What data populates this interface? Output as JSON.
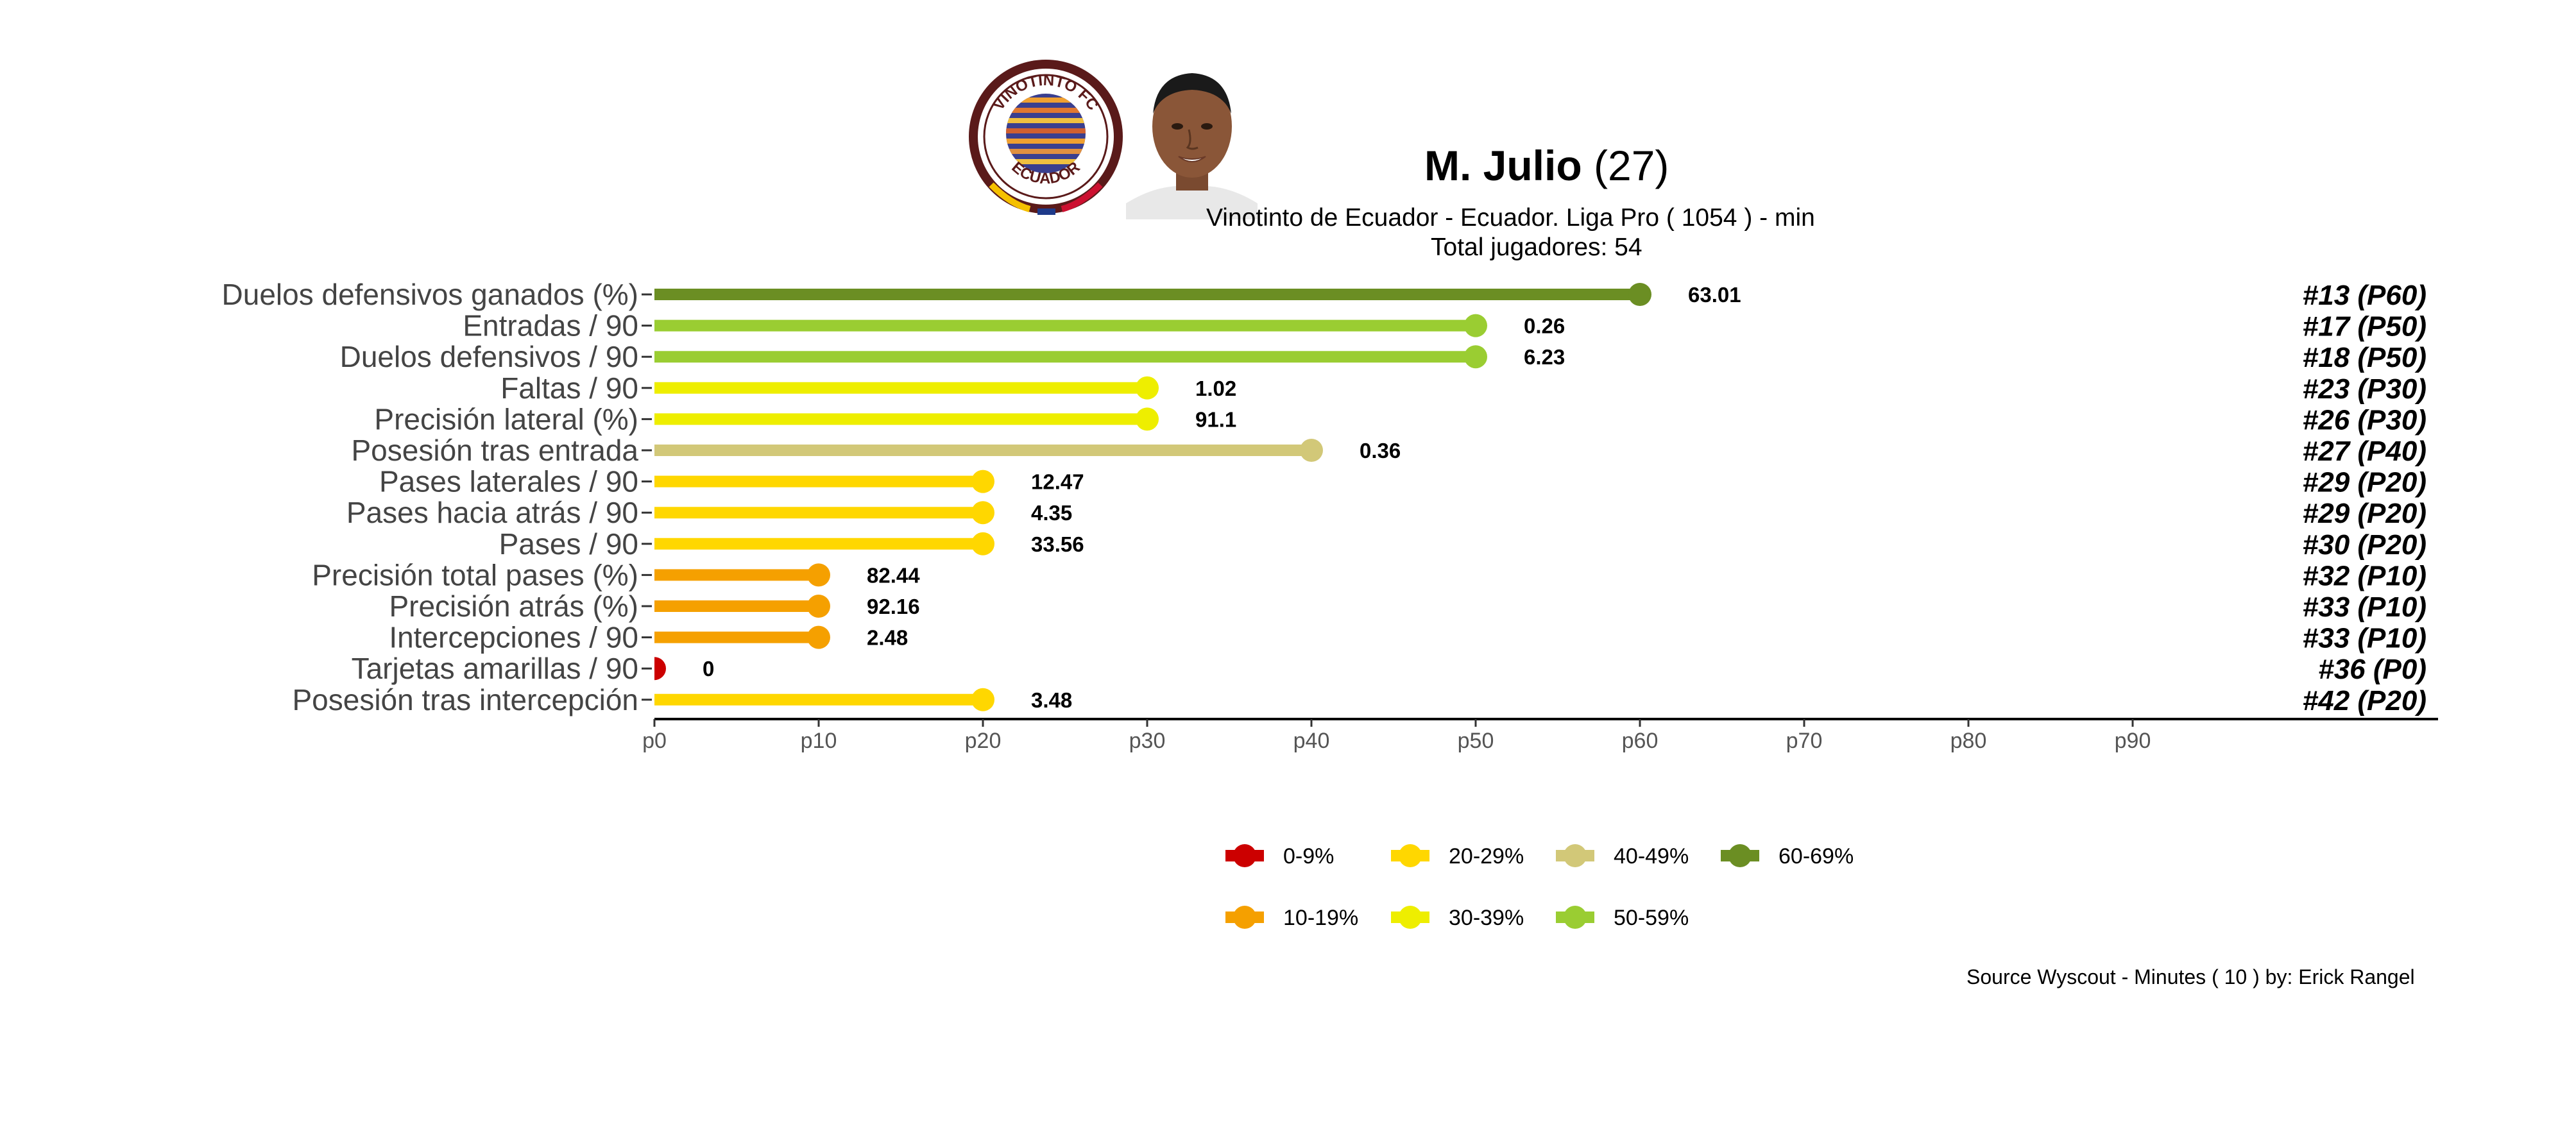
{
  "header": {
    "player_name": "M. Julio",
    "player_age": "(27)",
    "subtitle": "Vinotinto de Ecuador  -  Ecuador. Liga Pro  ( 1054 ) - min",
    "total_players": "Total jugadores:  54",
    "logo_text_top": "VINOTINTO FC",
    "logo_text_bottom": "ECUADOR"
  },
  "footer": {
    "source": "Source Wyscout - Minutes ( 10 ) by: Erick Rangel"
  },
  "colors": {
    "p0_9": "#cc0000",
    "p10_19": "#f5a000",
    "p20_29": "#ffd700",
    "p30_39": "#eeee00",
    "p40_49": "#d2c878",
    "p50_59": "#9acd32",
    "p60_69": "#6b8e23"
  },
  "chart_data": {
    "type": "bar",
    "orientation": "horizontal-lollipop",
    "xlim": [
      0,
      100
    ],
    "x_ticks": [
      "p0",
      "p10",
      "p20",
      "p30",
      "p40",
      "p50",
      "p60",
      "p70",
      "p80",
      "p90"
    ],
    "x_tick_values": [
      0,
      10,
      20,
      30,
      40,
      50,
      60,
      70,
      80,
      90
    ],
    "grid": false,
    "legend_position": "bottom",
    "legend": [
      {
        "label": "0-9%",
        "color": "#cc0000"
      },
      {
        "label": "10-19%",
        "color": "#f5a000"
      },
      {
        "label": "20-29%",
        "color": "#ffd700"
      },
      {
        "label": "30-39%",
        "color": "#eeee00"
      },
      {
        "label": "40-49%",
        "color": "#d2c878"
      },
      {
        "label": "50-59%",
        "color": "#9acd32"
      },
      {
        "label": "60-69%",
        "color": "#6b8e23"
      }
    ],
    "rows": [
      {
        "metric": "Duelos defensivos ganados (%)",
        "percentile": 60,
        "value": "63.01",
        "rank": "#13 (P60)",
        "color": "#6b8e23"
      },
      {
        "metric": "Entradas / 90",
        "percentile": 50,
        "value": "0.26",
        "rank": "#17 (P50)",
        "color": "#9acd32"
      },
      {
        "metric": "Duelos defensivos / 90",
        "percentile": 50,
        "value": "6.23",
        "rank": "#18 (P50)",
        "color": "#9acd32"
      },
      {
        "metric": "Faltas / 90",
        "percentile": 30,
        "value": "1.02",
        "rank": "#23 (P30)",
        "color": "#eeee00"
      },
      {
        "metric": "Precisión lateral (%)",
        "percentile": 30,
        "value": "91.1",
        "rank": "#26 (P30)",
        "color": "#eeee00"
      },
      {
        "metric": "Posesión tras entrada",
        "percentile": 40,
        "value": "0.36",
        "rank": "#27 (P40)",
        "color": "#d2c878"
      },
      {
        "metric": "Pases laterales / 90",
        "percentile": 20,
        "value": "12.47",
        "rank": "#29 (P20)",
        "color": "#ffd700"
      },
      {
        "metric": "Pases hacia atrás / 90",
        "percentile": 20,
        "value": "4.35",
        "rank": "#29 (P20)",
        "color": "#ffd700"
      },
      {
        "metric": "Pases / 90",
        "percentile": 20,
        "value": "33.56",
        "rank": "#30 (P20)",
        "color": "#ffd700"
      },
      {
        "metric": "Precisión total pases (%)",
        "percentile": 10,
        "value": "82.44",
        "rank": "#32 (P10)",
        "color": "#f5a000"
      },
      {
        "metric": "Precisión atrás (%)",
        "percentile": 10,
        "value": "92.16",
        "rank": "#33 (P10)",
        "color": "#f5a000"
      },
      {
        "metric": "Intercepciones / 90",
        "percentile": 10,
        "value": "2.48",
        "rank": "#33 (P10)",
        "color": "#f5a000"
      },
      {
        "metric": "Tarjetas amarillas / 90",
        "percentile": 0,
        "value": "0",
        "rank": "#36 (P0)",
        "color": "#cc0000"
      },
      {
        "metric": "Posesión tras intercepción",
        "percentile": 20,
        "value": "3.48",
        "rank": "#42 (P20)",
        "color": "#ffd700"
      }
    ]
  }
}
